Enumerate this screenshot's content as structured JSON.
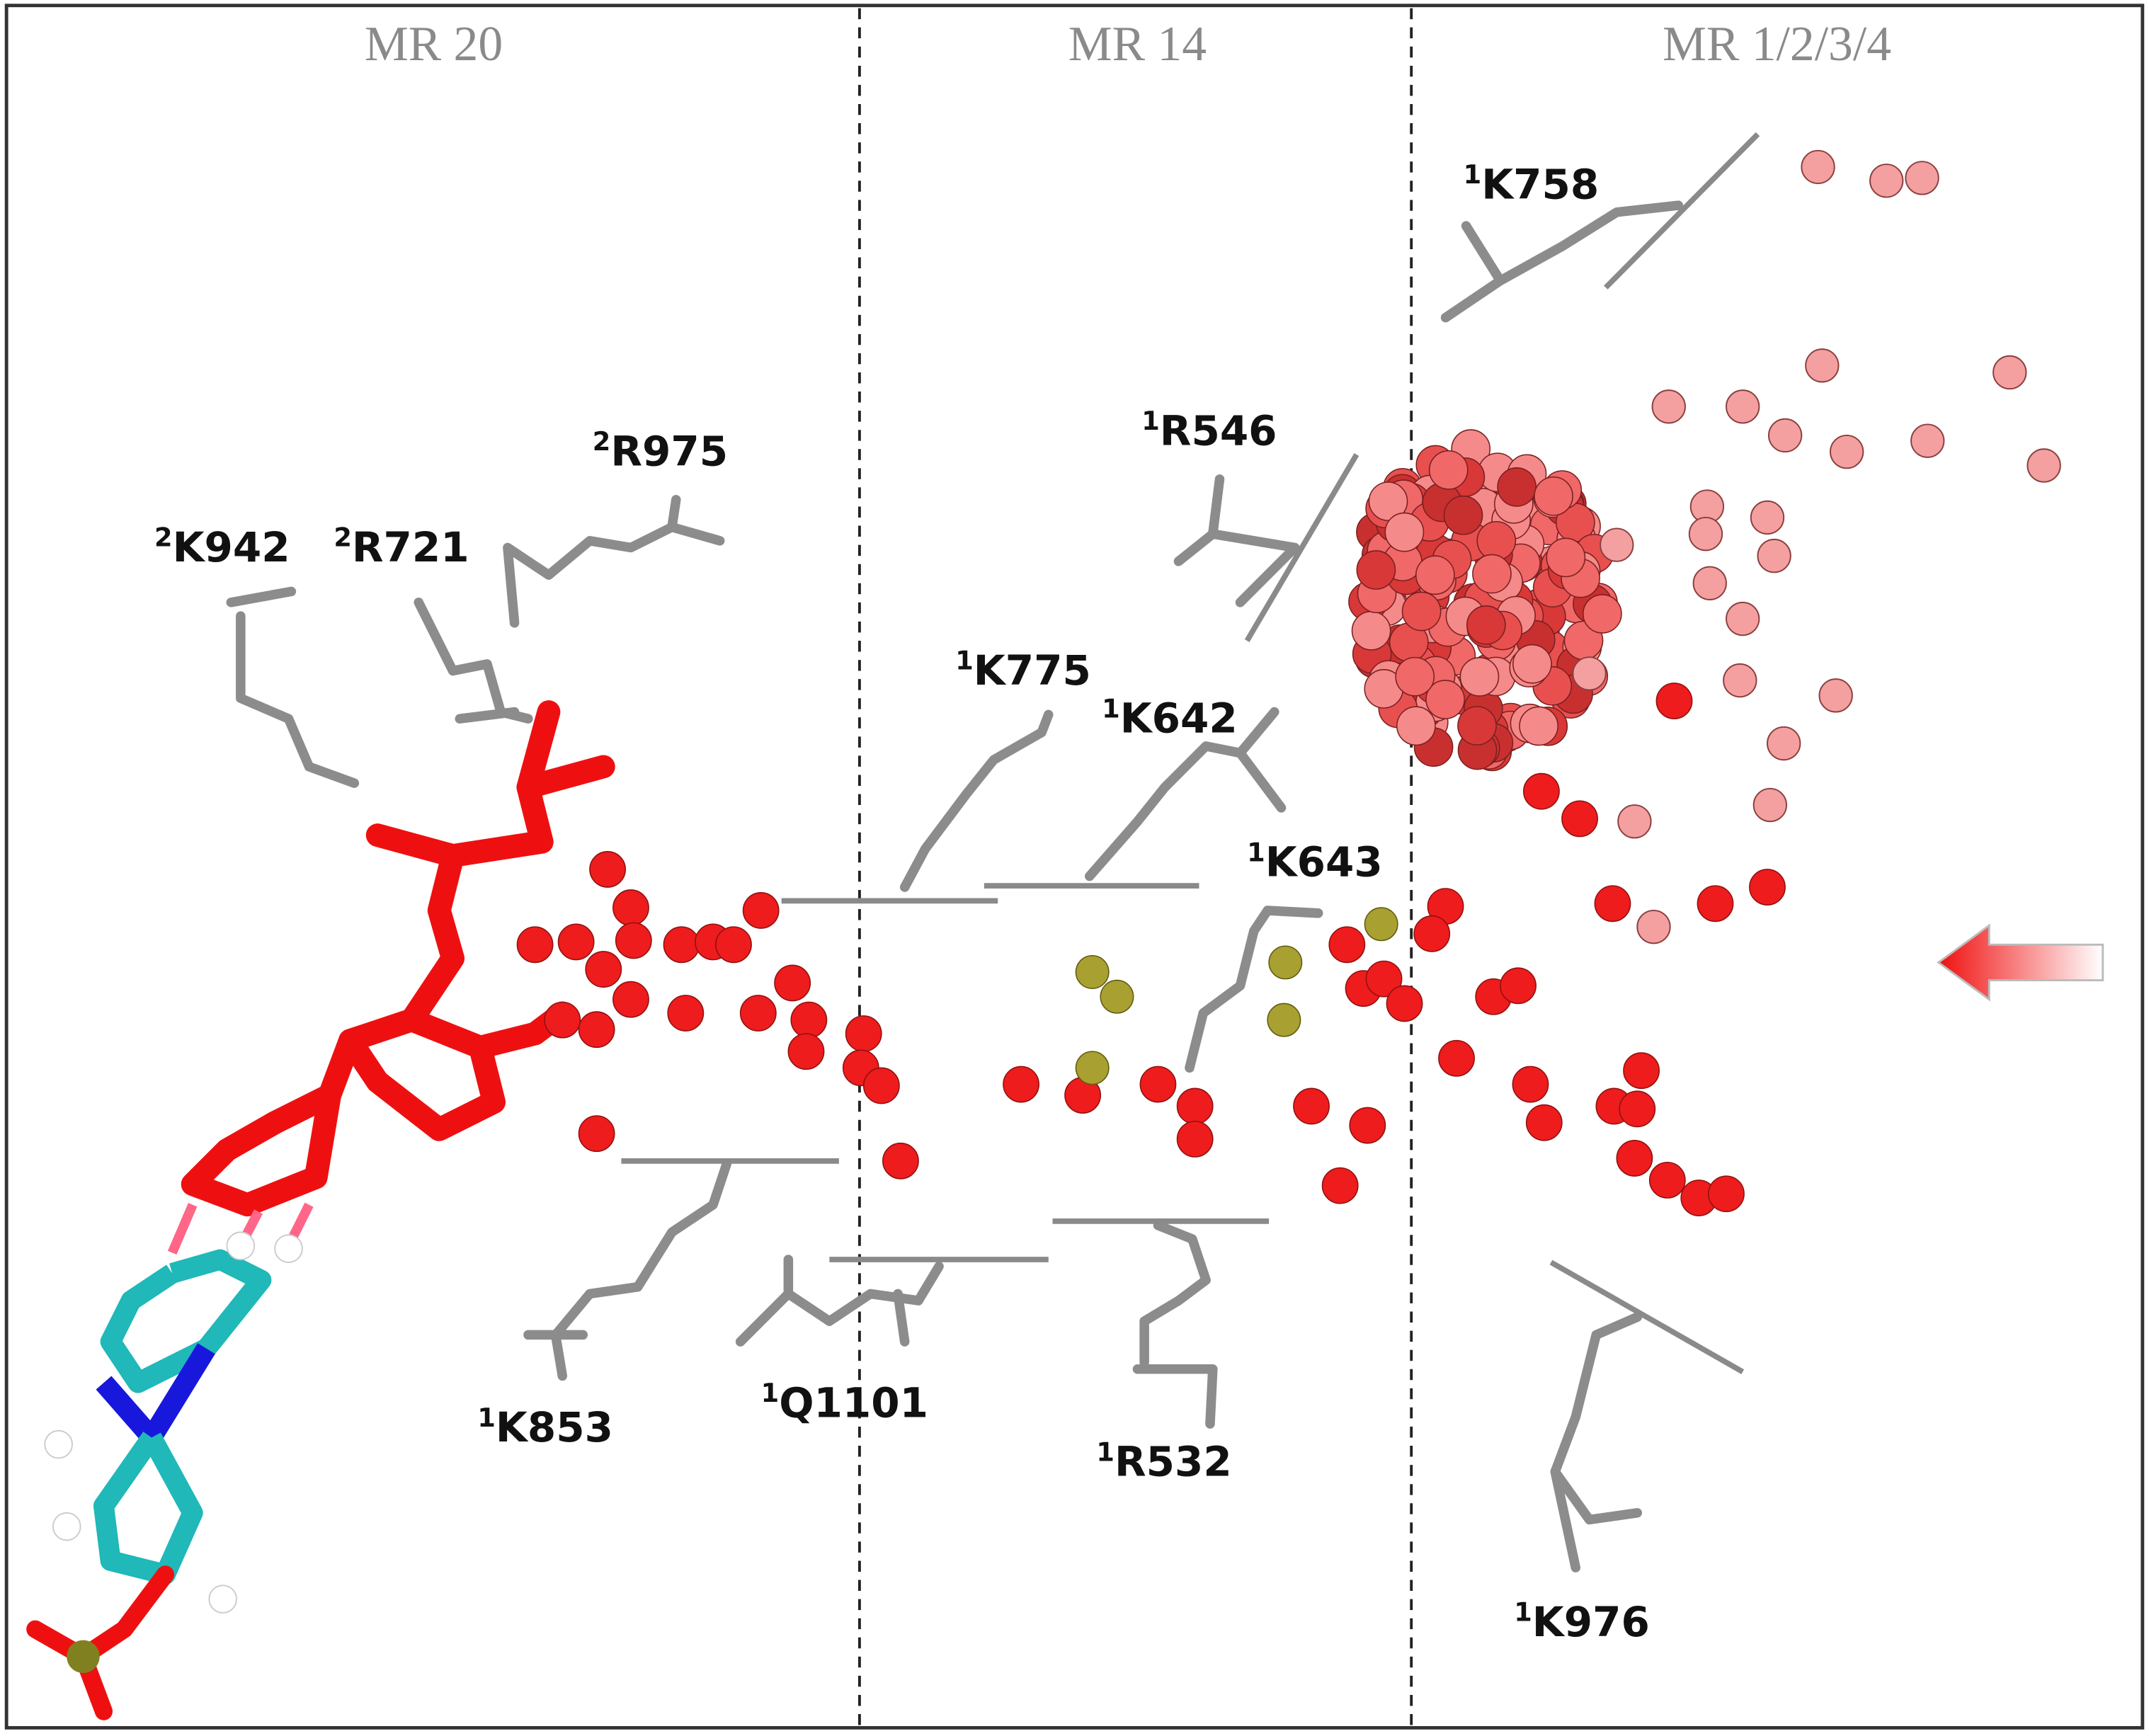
{
  "regions": [
    "MR 20",
    "MR 14",
    "MR 1/2/3/4"
  ],
  "residues": [
    {
      "sup": "1",
      "name": "K758"
    },
    {
      "sup": "1",
      "name": "R546"
    },
    {
      "sup": "2",
      "name": "R975"
    },
    {
      "sup": "2",
      "name": "K942"
    },
    {
      "sup": "2",
      "name": "R721"
    },
    {
      "sup": "1",
      "name": "K775"
    },
    {
      "sup": "1",
      "name": "K642"
    },
    {
      "sup": "1",
      "name": "K643"
    },
    {
      "sup": "1",
      "name": "K853"
    },
    {
      "sup": "1",
      "name": "Q1101"
    },
    {
      "sup": "1",
      "name": "R532"
    },
    {
      "sup": "1",
      "name": "K976"
    }
  ]
}
